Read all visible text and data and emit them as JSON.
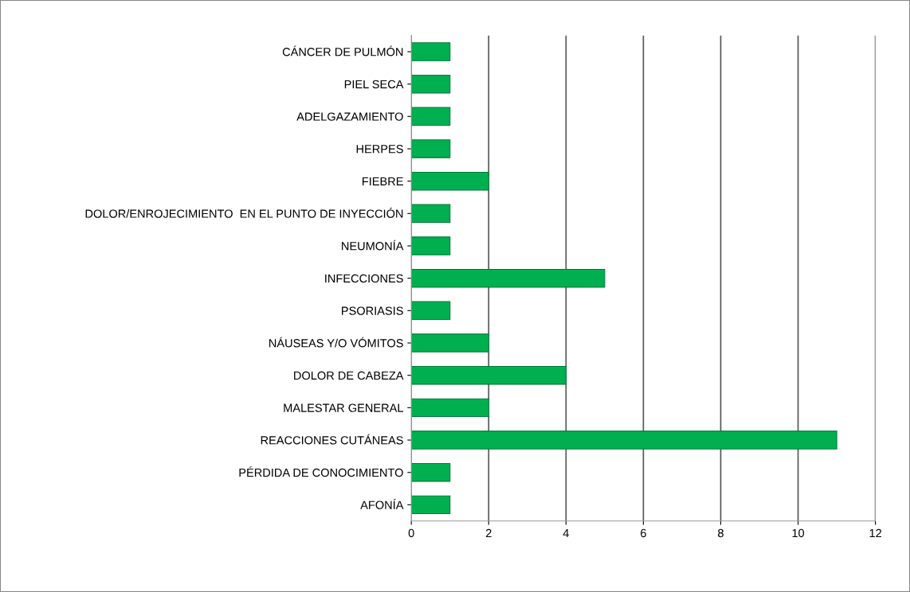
{
  "chart_data": {
    "type": "bar",
    "orientation": "horizontal",
    "categories": [
      "CÁNCER DE PULMÓN",
      "PIEL SECA",
      "ADELGAZAMIENTO",
      "HERPES",
      "FIEBRE",
      "DOLOR/ENROJECIMIENTO  EN EL PUNTO DE INYECCIÓN",
      "NEUMONÍA",
      "INFECCIONES",
      "PSORIASIS",
      "NÁUSEAS Y/O VÓMITOS",
      "DOLOR DE CABEZA",
      "MALESTAR GENERAL",
      "REACCIONES CUTÁNEAS",
      "PÉRDIDA DE CONOCIMIENTO",
      "AFONÍA"
    ],
    "values": [
      1,
      1,
      1,
      1,
      2,
      1,
      1,
      5,
      1,
      2,
      4,
      2,
      11,
      1,
      1
    ],
    "color": "#00b050",
    "xlim": [
      0,
      12
    ],
    "xticks": [
      0,
      2,
      4,
      6,
      8,
      10,
      12
    ],
    "grid": "x"
  }
}
